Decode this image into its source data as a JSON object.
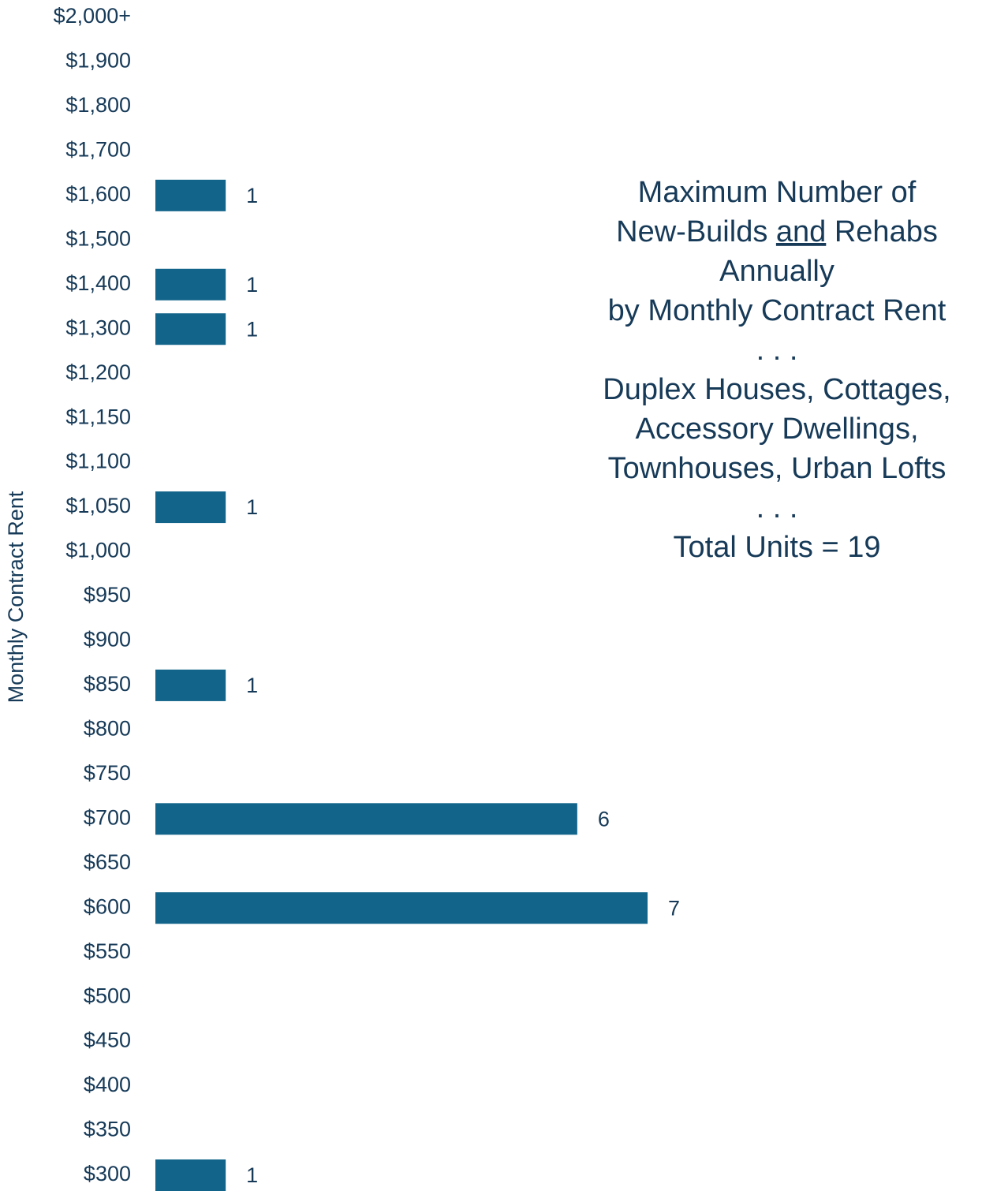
{
  "chart_data": {
    "type": "bar",
    "orientation": "horizontal",
    "title": [
      [
        "Maximum Number of"
      ],
      [
        "New-Builds ",
        {
          "text": "and",
          "underline": true
        },
        " Rehabs"
      ],
      [
        "Annually"
      ],
      [
        "by Monthly Contract Rent"
      ],
      [
        ". . ."
      ],
      [
        "Duplex Houses, Cottages,"
      ],
      [
        "Accessory Dwellings,"
      ],
      [
        "Townhouses, Urban Lofts"
      ],
      [
        ". . ."
      ],
      [
        "Total Units = 19"
      ]
    ],
    "y_label": "Monthly Contract Rent",
    "categories": [
      "$2,000+",
      "$1,900",
      "$1,800",
      "$1,700",
      "$1,600",
      "$1,500",
      "$1,400",
      "$1,300",
      "$1,200",
      "$1,150",
      "$1,100",
      "$1,050",
      "$1,000",
      "$950",
      "$900",
      "$850",
      "$800",
      "$750",
      "$700",
      "$650",
      "$600",
      "$550",
      "$500",
      "$450",
      "$400",
      "$350",
      "$300"
    ],
    "values": [
      null,
      null,
      null,
      null,
      1,
      null,
      1,
      1,
      null,
      null,
      null,
      1,
      null,
      null,
      null,
      1,
      null,
      null,
      6,
      null,
      7,
      null,
      null,
      null,
      null,
      null,
      1
    ],
    "color": "#12648a",
    "xlim": [
      0,
      7
    ]
  }
}
